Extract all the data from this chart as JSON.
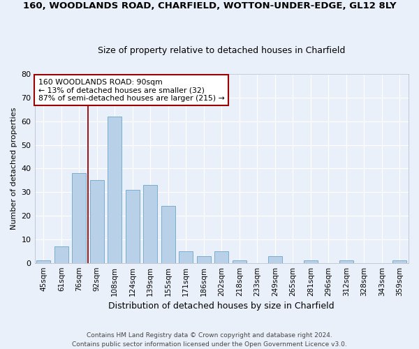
{
  "title1": "160, WOODLANDS ROAD, CHARFIELD, WOTTON-UNDER-EDGE, GL12 8LY",
  "title2": "Size of property relative to detached houses in Charfield",
  "xlabel": "Distribution of detached houses by size in Charfield",
  "ylabel": "Number of detached properties",
  "categories": [
    "45sqm",
    "61sqm",
    "76sqm",
    "92sqm",
    "108sqm",
    "124sqm",
    "139sqm",
    "155sqm",
    "171sqm",
    "186sqm",
    "202sqm",
    "218sqm",
    "233sqm",
    "249sqm",
    "265sqm",
    "281sqm",
    "296sqm",
    "312sqm",
    "328sqm",
    "343sqm",
    "359sqm"
  ],
  "values": [
    1,
    7,
    38,
    35,
    62,
    31,
    33,
    24,
    5,
    3,
    5,
    1,
    0,
    3,
    0,
    1,
    0,
    1,
    0,
    0,
    1
  ],
  "bar_color": "#b8d0e8",
  "bar_edge_color": "#7aadcf",
  "background_color": "#eaf0f9",
  "grid_color": "#ffffff",
  "annotation_line_idx": 3,
  "annotation_line_color": "#990000",
  "annotation_box_text": "160 WOODLANDS ROAD: 90sqm\n← 13% of detached houses are smaller (32)\n87% of semi-detached houses are larger (215) →",
  "annotation_box_color": "#ffffff",
  "annotation_box_edge_color": "#990000",
  "footer_text": "Contains HM Land Registry data © Crown copyright and database right 2024.\nContains public sector information licensed under the Open Government Licence v3.0.",
  "ylim": [
    0,
    80
  ],
  "yticks": [
    0,
    10,
    20,
    30,
    40,
    50,
    60,
    70,
    80
  ]
}
